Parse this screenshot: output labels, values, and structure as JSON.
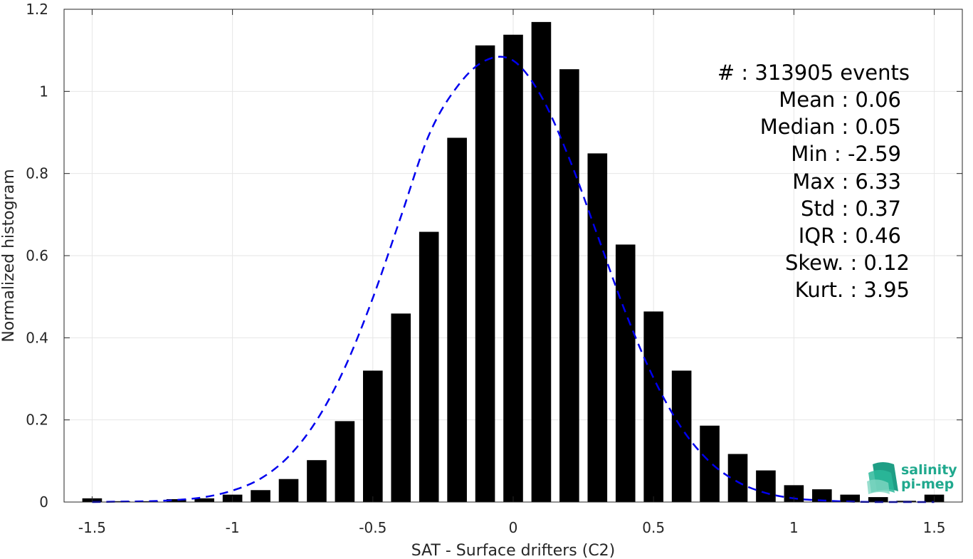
{
  "chart_data": {
    "type": "bar",
    "xlabel": "SAT - Surface drifters (C2)",
    "ylabel": "Normalized histogram",
    "xlim": [
      -1.6,
      1.6
    ],
    "ylim": [
      0,
      1.2
    ],
    "xticks": [
      "-1.5",
      "-1",
      "-0.5",
      "0",
      "0.5",
      "1",
      "1.5"
    ],
    "xtick_values": [
      -1.5,
      -1,
      -0.5,
      0,
      0.5,
      1,
      1.5
    ],
    "yticks": [
      "0",
      "0.2",
      "0.4",
      "0.6",
      "0.8",
      "1",
      "1.2"
    ],
    "ytick_values": [
      0,
      0.2,
      0.4,
      0.6,
      0.8,
      1.0,
      1.2
    ],
    "grid": true,
    "bin_width": 0.1,
    "bar_fraction": 0.7,
    "bar_color": "#000000",
    "series": [
      {
        "type": "bar",
        "x": [
          -1.5,
          -1.4,
          -1.3,
          -1.2,
          -1.1,
          -1.0,
          -0.9,
          -0.8,
          -0.7,
          -0.6,
          -0.5,
          -0.4,
          -0.3,
          -0.2,
          -0.1,
          0.0,
          0.1,
          0.2,
          0.3,
          0.4,
          0.5,
          0.6,
          0.7,
          0.8,
          0.9,
          1.0,
          1.1,
          1.2,
          1.3,
          1.4,
          1.5
        ],
        "values": [
          0.009,
          0.002,
          0.002,
          0.007,
          0.009,
          0.018,
          0.029,
          0.056,
          0.102,
          0.197,
          0.32,
          0.459,
          0.658,
          0.887,
          1.112,
          1.138,
          1.169,
          1.054,
          0.849,
          0.627,
          0.464,
          0.32,
          0.186,
          0.117,
          0.077,
          0.041,
          0.031,
          0.018,
          0.012,
          0.003,
          0.018
        ]
      },
      {
        "type": "line",
        "style": "dashed",
        "color": "#0000ee",
        "x": [
          -1.5,
          -1.4,
          -1.3,
          -1.2,
          -1.1,
          -1.0,
          -0.9,
          -0.8,
          -0.7,
          -0.6,
          -0.5,
          -0.4,
          -0.3,
          -0.2,
          -0.1,
          0.0,
          0.1,
          0.2,
          0.3,
          0.4,
          0.5,
          0.6,
          0.7,
          0.8,
          0.9,
          1.0,
          1.1,
          1.2,
          1.3,
          1.4,
          1.5
        ],
        "values": [
          0.0,
          0.001,
          0.002,
          0.005,
          0.012,
          0.028,
          0.057,
          0.111,
          0.199,
          0.327,
          0.497,
          0.695,
          0.894,
          1.011,
          1.075,
          1.075,
          0.988,
          0.836,
          0.65,
          0.462,
          0.302,
          0.18,
          0.098,
          0.049,
          0.022,
          0.009,
          0.004,
          0.001,
          0.0,
          0.0,
          0.0
        ]
      }
    ]
  },
  "stats": {
    "count": "#  : 313905 events",
    "mean": "Mean : 0.06",
    "median": "Median : 0.05",
    "min": "Min : -2.59",
    "max": "Max : 6.33",
    "std": "Std : 0.37",
    "iqr": "IQR : 0.46",
    "skew": "Skew. : 0.12",
    "kurt": "Kurt. : 3.95"
  },
  "logo": {
    "line1": "salinity",
    "line2": "pi-mep",
    "color": "#20a98e"
  }
}
